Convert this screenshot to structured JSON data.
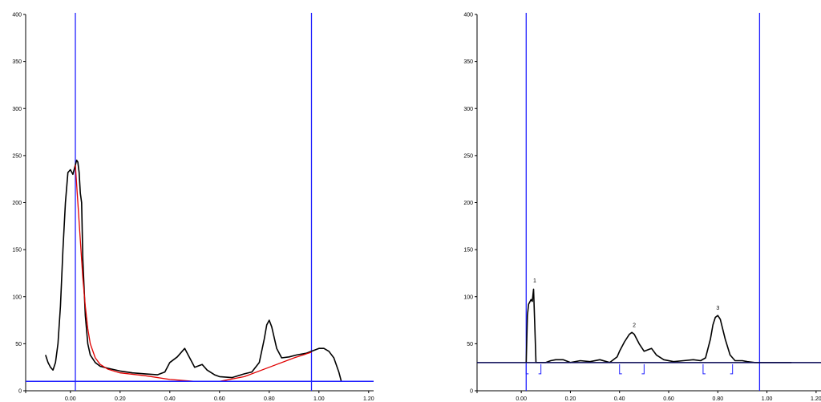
{
  "chart_data": [
    {
      "type": "line",
      "title": "",
      "xlabel": "",
      "ylabel": "",
      "xlim": [
        -0.18,
        1.22
      ],
      "ylim": [
        0,
        400
      ],
      "x_ticks": [
        "0.00",
        "0.20",
        "0.40",
        "0.60",
        "0.80",
        "1.00",
        "1.20"
      ],
      "x_tick_values": [
        0.0,
        0.2,
        0.4,
        0.6,
        0.8,
        1.0,
        1.2
      ],
      "y_ticks": [
        "0",
        "50",
        "100",
        "150",
        "200",
        "250",
        "300",
        "350",
        "400"
      ],
      "y_tick_values": [
        0,
        50,
        100,
        150,
        200,
        250,
        300,
        350,
        400
      ],
      "grid": false,
      "series": [
        {
          "color": "#000000",
          "x": [
            -0.1,
            -0.09,
            -0.08,
            -0.07,
            -0.06,
            -0.05,
            -0.04,
            -0.03,
            -0.02,
            -0.01,
            0.0,
            0.01,
            0.02,
            0.025,
            0.03,
            0.035,
            0.04,
            0.045,
            0.05,
            0.06,
            0.07,
            0.08,
            0.1,
            0.12,
            0.15,
            0.2,
            0.25,
            0.3,
            0.35,
            0.38,
            0.4,
            0.43,
            0.46,
            0.48,
            0.5,
            0.53,
            0.55,
            0.58,
            0.6,
            0.65,
            0.7,
            0.73,
            0.76,
            0.78,
            0.79,
            0.8,
            0.81,
            0.83,
            0.85,
            0.88,
            0.91,
            0.95,
            1.0,
            1.02,
            1.04,
            1.06,
            1.08,
            1.09
          ],
          "y": [
            38,
            30,
            25,
            22,
            30,
            50,
            90,
            150,
            200,
            232,
            235,
            230,
            240,
            245,
            243,
            232,
            210,
            200,
            140,
            80,
            50,
            38,
            30,
            26,
            24,
            21,
            19,
            18,
            17,
            20,
            30,
            36,
            45,
            35,
            25,
            28,
            22,
            17,
            15,
            14,
            18,
            20,
            30,
            55,
            70,
            75,
            68,
            45,
            35,
            36,
            38,
            40,
            45,
            45,
            42,
            35,
            20,
            10
          ]
        },
        {
          "color": "#e00000",
          "x": [
            0.02,
            0.03,
            0.04,
            0.05,
            0.06,
            0.07,
            0.08,
            0.1,
            0.12,
            0.15,
            0.2,
            0.3,
            0.4,
            0.5,
            0.6,
            0.7,
            0.8,
            0.9,
            0.97
          ],
          "y": [
            240,
            200,
            160,
            120,
            90,
            66,
            50,
            35,
            28,
            23,
            19,
            16,
            12,
            10,
            10,
            15,
            25,
            35,
            41
          ]
        }
      ],
      "hlines": [
        {
          "y": 10,
          "color": "#2020ff"
        }
      ],
      "vlines": [
        {
          "x": 0.02,
          "color": "#2020ff"
        },
        {
          "x": 0.97,
          "color": "#2020ff"
        }
      ]
    },
    {
      "type": "line",
      "title": "",
      "xlabel": "",
      "ylabel": "",
      "xlim": [
        -0.18,
        1.22
      ],
      "ylim": [
        0,
        400
      ],
      "x_ticks": [
        "0.00",
        "0.20",
        "0.40",
        "0.60",
        "0.80",
        "1.00",
        "1.20"
      ],
      "x_tick_values": [
        0.0,
        0.2,
        0.4,
        0.6,
        0.8,
        1.0,
        1.2
      ],
      "y_ticks": [
        "0",
        "50",
        "100",
        "150",
        "200",
        "250",
        "300",
        "350",
        "400"
      ],
      "y_tick_values": [
        0,
        50,
        100,
        150,
        200,
        250,
        300,
        350,
        400
      ],
      "grid": false,
      "series": [
        {
          "color": "#000000",
          "x": [
            0.02,
            0.025,
            0.03,
            0.04,
            0.045,
            0.05,
            0.055,
            0.06,
            0.07,
            0.1,
            0.12,
            0.14,
            0.17,
            0.2,
            0.24,
            0.28,
            0.32,
            0.36,
            0.39,
            0.4,
            0.42,
            0.44,
            0.45,
            0.46,
            0.48,
            0.5,
            0.52,
            0.53,
            0.55,
            0.58,
            0.62,
            0.66,
            0.7,
            0.73,
            0.75,
            0.77,
            0.78,
            0.79,
            0.8,
            0.81,
            0.83,
            0.85,
            0.87,
            0.9,
            0.92,
            0.95,
            1.1
          ],
          "y": [
            30,
            80,
            92,
            97,
            95,
            108,
            70,
            30,
            30,
            30,
            32,
            33,
            33,
            30,
            32,
            31,
            33,
            30,
            36,
            42,
            52,
            60,
            62,
            60,
            50,
            42,
            44,
            45,
            38,
            33,
            31,
            32,
            33,
            32,
            35,
            55,
            70,
            78,
            80,
            76,
            55,
            38,
            32,
            32,
            31,
            30,
            30
          ]
        }
      ],
      "hlines": [
        {
          "y": 30,
          "color": "#2020ff"
        },
        {
          "y": 30,
          "color": "#000000"
        }
      ],
      "vlines": [
        {
          "x": 0.02,
          "color": "#2020ff"
        },
        {
          "x": 0.97,
          "color": "#2020ff"
        }
      ],
      "annotations": [
        {
          "text": "1",
          "x": 0.055,
          "y": 115
        },
        {
          "text": "2",
          "x": 0.46,
          "y": 68
        },
        {
          "text": "3",
          "x": 0.8,
          "y": 86
        }
      ],
      "peak_ranges": [
        {
          "label": "1",
          "start": 0.02,
          "end": 0.08
        },
        {
          "label": "2",
          "start": 0.4,
          "end": 0.5
        },
        {
          "label": "3",
          "start": 0.74,
          "end": 0.86
        }
      ]
    }
  ]
}
